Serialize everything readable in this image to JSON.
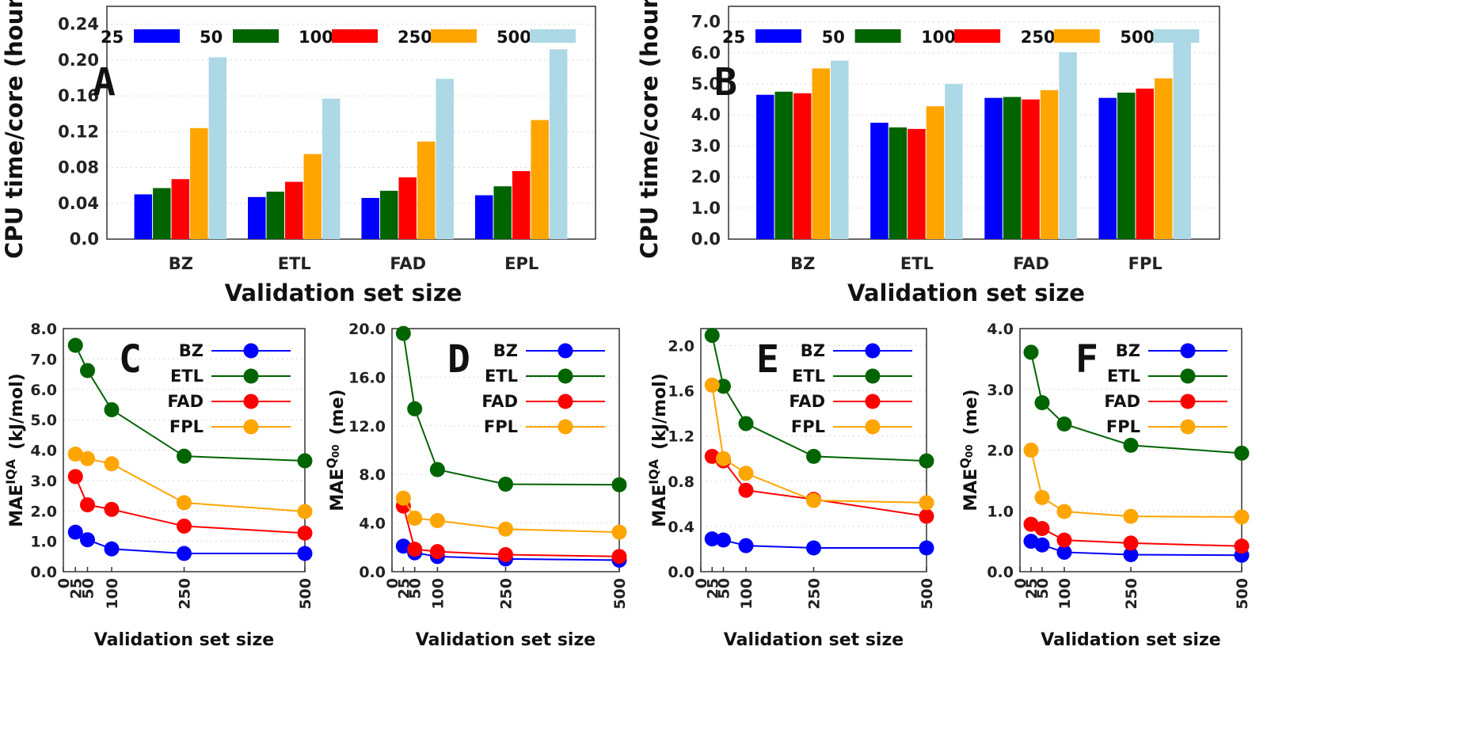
{
  "colors": {
    "blue": "#0000ff",
    "green": "#006400",
    "red": "#ff0000",
    "orange": "#ffa500",
    "lightblue": "#add8e6"
  },
  "chart_data": [
    {
      "id": "A",
      "type": "bar",
      "panel_label": "A",
      "categories": [
        "BZ",
        "ETL",
        "FAD",
        "EPL"
      ],
      "legend": [
        "25",
        "50",
        "100",
        "250",
        "500"
      ],
      "series": [
        {
          "name": "25",
          "color": "#0000ff",
          "values": [
            0.05,
            0.047,
            0.046,
            0.049
          ]
        },
        {
          "name": "50",
          "color": "#006400",
          "values": [
            0.057,
            0.053,
            0.054,
            0.059
          ]
        },
        {
          "name": "100",
          "color": "#ff0000",
          "values": [
            0.067,
            0.064,
            0.069,
            0.076
          ]
        },
        {
          "name": "250",
          "color": "#ffa500",
          "values": [
            0.124,
            0.095,
            0.109,
            0.133
          ]
        },
        {
          "name": "500",
          "color": "#add8e6",
          "values": [
            0.203,
            0.157,
            0.179,
            0.212
          ]
        }
      ],
      "yticks": [
        "0.0",
        "0.04",
        "0.08",
        "0.12",
        "0.16",
        "0.20",
        "0.24"
      ],
      "ytick_values": [
        0,
        0.04,
        0.08,
        0.12,
        0.16,
        0.2,
        0.24
      ],
      "ylim": [
        0,
        0.26
      ],
      "ylabel": "CPU time/core (hour)",
      "xlabel": "Validation set size",
      "grid": true
    },
    {
      "id": "B",
      "type": "bar",
      "panel_label": "B",
      "categories": [
        "BZ",
        "ETL",
        "FAD",
        "FPL"
      ],
      "legend": [
        "25",
        "50",
        "100",
        "250",
        "500"
      ],
      "series": [
        {
          "name": "25",
          "color": "#0000ff",
          "values": [
            4.65,
            3.75,
            4.55,
            4.55
          ]
        },
        {
          "name": "50",
          "color": "#006400",
          "values": [
            4.75,
            3.6,
            4.58,
            4.72
          ]
        },
        {
          "name": "100",
          "color": "#ff0000",
          "values": [
            4.7,
            3.55,
            4.5,
            4.85
          ]
        },
        {
          "name": "250",
          "color": "#ffa500",
          "values": [
            5.5,
            4.28,
            4.8,
            5.18
          ]
        },
        {
          "name": "500",
          "color": "#add8e6",
          "values": [
            5.75,
            5.0,
            6.02,
            6.48
          ]
        }
      ],
      "yticks": [
        "0.0",
        "1.0",
        "2.0",
        "3.0",
        "4.0",
        "5.0",
        "6.0",
        "7.0"
      ],
      "ytick_values": [
        0,
        1,
        2,
        3,
        4,
        5,
        6,
        7
      ],
      "ylim": [
        0,
        7.5
      ],
      "ylabel": "CPU time/core (hour)",
      "xlabel": "Validation set size",
      "grid": true
    },
    {
      "id": "C",
      "type": "line",
      "panel_label": "C",
      "x": [
        25,
        50,
        100,
        250,
        500
      ],
      "xticks": [
        "0",
        "25",
        "50",
        "100",
        "250",
        "500"
      ],
      "xtick_values": [
        0,
        25,
        50,
        100,
        250,
        500
      ],
      "xlim": [
        0,
        500
      ],
      "series": [
        {
          "name": "BZ",
          "color": "#0000ff",
          "values": [
            1.3,
            1.05,
            0.75,
            0.6,
            0.6
          ]
        },
        {
          "name": "ETL",
          "color": "#006400",
          "values": [
            7.45,
            6.62,
            5.33,
            3.8,
            3.65
          ]
        },
        {
          "name": "FAD",
          "color": "#ff0000",
          "values": [
            3.13,
            2.2,
            2.05,
            1.5,
            1.27
          ]
        },
        {
          "name": "FPL",
          "color": "#ffa500",
          "values": [
            3.87,
            3.72,
            3.55,
            2.27,
            1.98
          ]
        }
      ],
      "yticks": [
        "0.0",
        "1.0",
        "2.0",
        "3.0",
        "4.0",
        "5.0",
        "6.0",
        "7.0",
        "8.0"
      ],
      "ytick_values": [
        0,
        1,
        2,
        3,
        4,
        5,
        6,
        7,
        8
      ],
      "ylim": [
        0,
        8
      ],
      "ylabel_main": "MAE",
      "ylabel_sup": "IQA",
      "ylabel_unit": "(kJ/mol)",
      "xlabel": "Validation set size"
    },
    {
      "id": "D",
      "type": "line",
      "panel_label": "D",
      "x": [
        25,
        50,
        100,
        250,
        500
      ],
      "xticks": [
        "0",
        "25",
        "50",
        "100",
        "250",
        "500"
      ],
      "xtick_values": [
        0,
        25,
        50,
        100,
        250,
        500
      ],
      "xlim": [
        0,
        500
      ],
      "series": [
        {
          "name": "BZ",
          "color": "#0000ff",
          "values": [
            2.1,
            1.55,
            1.25,
            1.05,
            0.95
          ]
        },
        {
          "name": "ETL",
          "color": "#006400",
          "values": [
            19.6,
            13.4,
            8.4,
            7.2,
            7.15
          ]
        },
        {
          "name": "FAD",
          "color": "#ff0000",
          "values": [
            5.4,
            1.85,
            1.65,
            1.4,
            1.25
          ]
        },
        {
          "name": "FPL",
          "color": "#ffa500",
          "values": [
            6.05,
            4.4,
            4.2,
            3.5,
            3.25
          ]
        }
      ],
      "yticks": [
        "0.0",
        "4.0",
        "8.0",
        "12.0",
        "16.0",
        "20.0"
      ],
      "ytick_values": [
        0,
        4,
        8,
        12,
        16,
        20
      ],
      "ylim": [
        0,
        20
      ],
      "ylabel_main": "MAE",
      "ylabel_sup": "Q",
      "ylabel_sub": "00",
      "ylabel_unit": "(me)",
      "xlabel": "Validation set size"
    },
    {
      "id": "E",
      "type": "line",
      "panel_label": "E",
      "x": [
        25,
        50,
        100,
        250,
        500
      ],
      "xticks": [
        "0",
        "25",
        "50",
        "100",
        "250",
        "500"
      ],
      "xtick_values": [
        0,
        25,
        50,
        100,
        250,
        500
      ],
      "xlim": [
        0,
        500
      ],
      "series": [
        {
          "name": "BZ",
          "color": "#0000ff",
          "values": [
            0.29,
            0.28,
            0.23,
            0.21,
            0.21
          ]
        },
        {
          "name": "ETL",
          "color": "#006400",
          "values": [
            2.09,
            1.64,
            1.31,
            1.02,
            0.98
          ]
        },
        {
          "name": "FAD",
          "color": "#ff0000",
          "values": [
            1.02,
            0.98,
            0.72,
            0.64,
            0.49
          ]
        },
        {
          "name": "FPL",
          "color": "#ffa500",
          "values": [
            1.65,
            1.0,
            0.87,
            0.63,
            0.61
          ]
        }
      ],
      "yticks": [
        "0.0",
        "0.4",
        "0.8",
        "1.2",
        "1.6",
        "2.0"
      ],
      "ytick_values": [
        0,
        0.4,
        0.8,
        1.2,
        1.6,
        2.0
      ],
      "ylim": [
        0,
        2.15
      ],
      "ylabel_main": "MAE",
      "ylabel_sup": "IQA",
      "ylabel_unit": "(kJ/mol)",
      "xlabel": "Validation set size"
    },
    {
      "id": "F",
      "type": "line",
      "panel_label": "F",
      "x": [
        25,
        50,
        100,
        250,
        500
      ],
      "xticks": [
        "0",
        "25",
        "50",
        "100",
        "250",
        "500"
      ],
      "xtick_values": [
        0,
        25,
        50,
        100,
        250,
        500
      ],
      "xlim": [
        0,
        500
      ],
      "series": [
        {
          "name": "BZ",
          "color": "#0000ff",
          "values": [
            0.5,
            0.44,
            0.32,
            0.28,
            0.27
          ]
        },
        {
          "name": "ETL",
          "color": "#006400",
          "values": [
            3.61,
            2.78,
            2.43,
            2.08,
            1.95
          ]
        },
        {
          "name": "FAD",
          "color": "#ff0000",
          "values": [
            0.78,
            0.71,
            0.52,
            0.47,
            0.42
          ]
        },
        {
          "name": "FPL",
          "color": "#ffa500",
          "values": [
            2.0,
            1.22,
            0.99,
            0.91,
            0.9
          ]
        }
      ],
      "yticks": [
        "0.0",
        "1.0",
        "2.0",
        "3.0",
        "4.0"
      ],
      "ytick_values": [
        0,
        1,
        2,
        3,
        4
      ],
      "ylim": [
        0,
        4
      ],
      "ylabel_main": "MAE",
      "ylabel_sup": "Q",
      "ylabel_sub": "00",
      "ylabel_unit": "(me)",
      "xlabel": "Validation set size"
    }
  ]
}
